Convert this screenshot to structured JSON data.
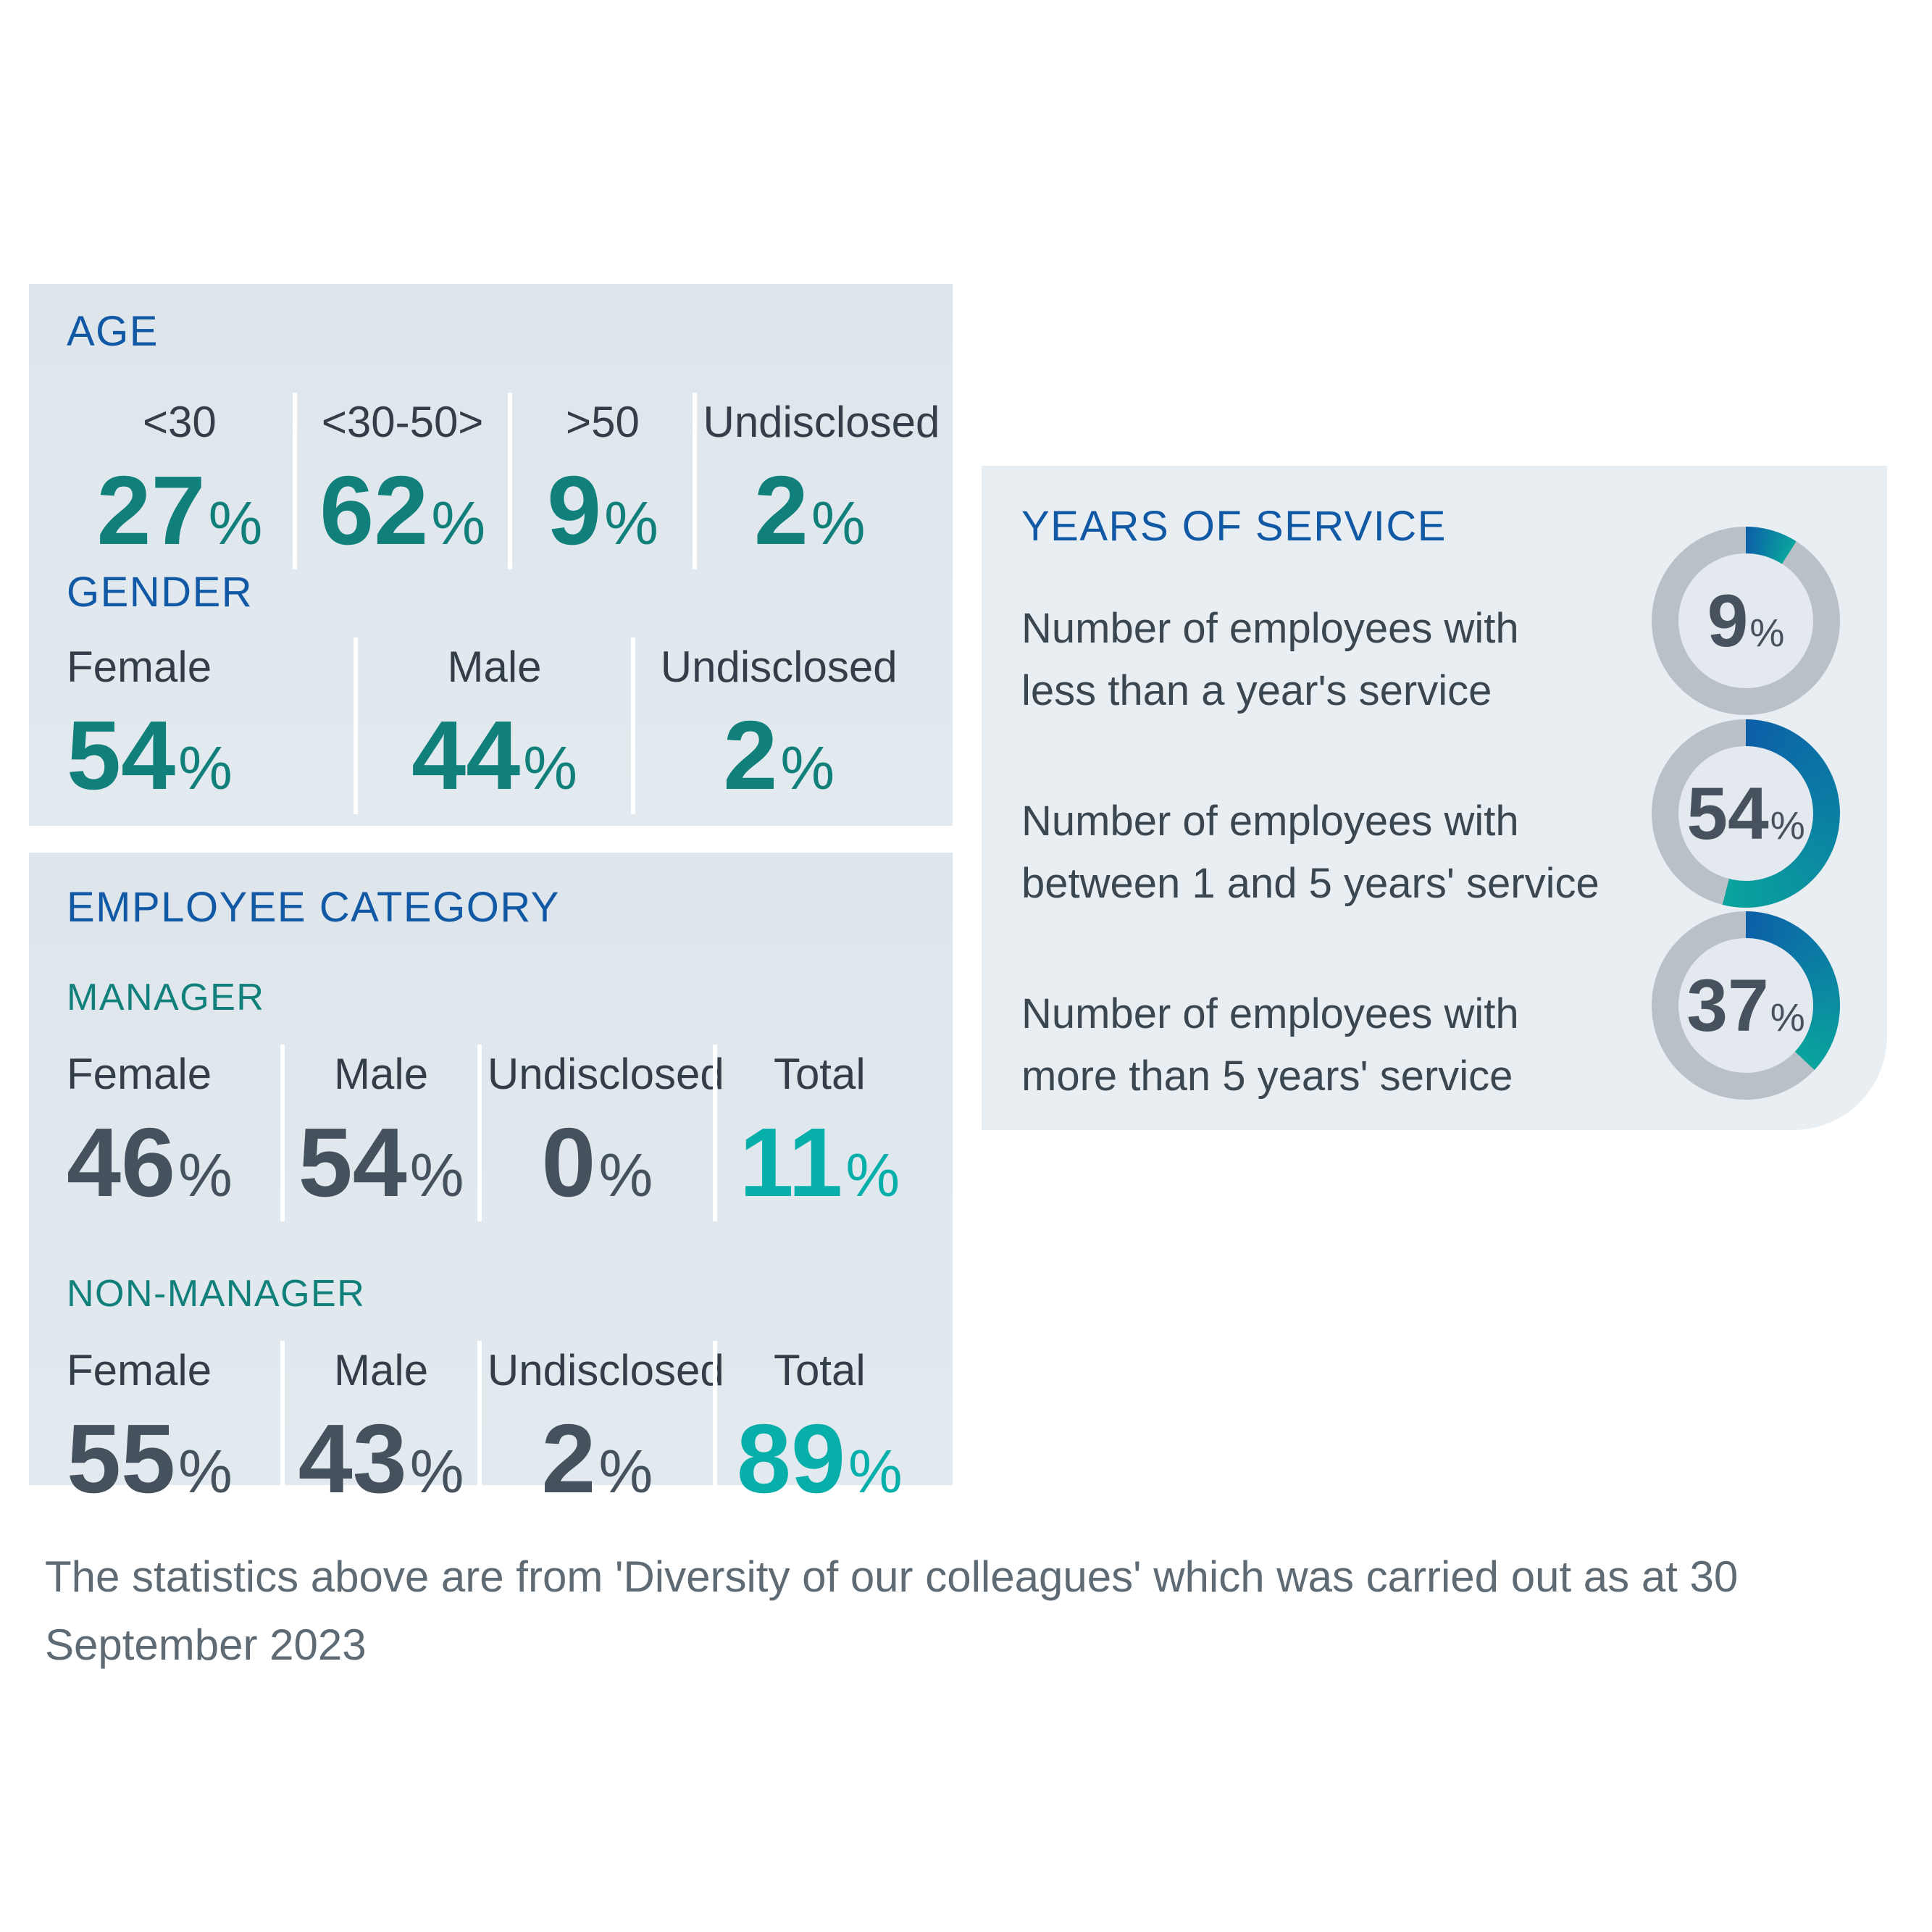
{
  "chart_data": [
    {
      "type": "table",
      "title": "AGE",
      "categories": [
        "<30",
        "<30-50>",
        ">50",
        "Undisclosed"
      ],
      "values": [
        27,
        62,
        9,
        2
      ],
      "unit": "%"
    },
    {
      "type": "table",
      "title": "GENDER",
      "categories": [
        "Female",
        "Male",
        "Undisclosed"
      ],
      "values": [
        54,
        44,
        2
      ],
      "unit": "%"
    },
    {
      "type": "table",
      "title": "EMPLOYEE CATEGORY - MANAGER",
      "categories": [
        "Female",
        "Male",
        "Undisclosed",
        "Total"
      ],
      "values": [
        46,
        54,
        0,
        11
      ],
      "unit": "%"
    },
    {
      "type": "table",
      "title": "EMPLOYEE CATEGORY - NON-MANAGER",
      "categories": [
        "Female",
        "Male",
        "Undisclosed",
        "Total"
      ],
      "values": [
        55,
        43,
        2,
        89
      ],
      "unit": "%"
    },
    {
      "type": "pie",
      "title": "YEARS OF SERVICE",
      "categories": [
        "less than a year's service",
        "between 1 and 5 years' service",
        "more than 5 years' service"
      ],
      "values": [
        9,
        54,
        37
      ],
      "unit": "%",
      "legend_position": "left",
      "annotations": "donut rings, progress clockwise from 12 o'clock, blue-to-teal gradient arc on gray ring"
    }
  ],
  "misc": {
    "percent": "%"
  },
  "colors": {
    "heading_blue": "#1159a5",
    "dark_teal": "#11807b",
    "bright_teal": "#06afa9",
    "slate": "#45515c",
    "label_slate": "#333e48",
    "panel_left_bg": "#dfe6ec",
    "panel_right_bg": "#e9eef2",
    "ring_gray": "#b9c0c7",
    "ring_inner": "#e3e9ee",
    "arc_start": "#0c5fa8",
    "arc_end": "#0aa49d",
    "caption_gray": "#5e6a74"
  },
  "panels": {
    "age": {
      "title": "AGE",
      "items": [
        {
          "label": "<30",
          "value": "27"
        },
        {
          "label": "<30-50>",
          "value": "62"
        },
        {
          "label": ">50",
          "value": "9"
        },
        {
          "label": "Undisclosed",
          "value": "2"
        }
      ]
    },
    "gender": {
      "title": "GENDER",
      "items": [
        {
          "label": "Female",
          "value": "54"
        },
        {
          "label": "Male",
          "value": "44"
        },
        {
          "label": "Undisclosed",
          "value": "2"
        }
      ]
    },
    "employee_category": {
      "title": "EMPLOYEE CATEGORY",
      "groups": [
        {
          "name": "MANAGER",
          "items": [
            {
              "label": "Female",
              "value": "46"
            },
            {
              "label": "Male",
              "value": "54"
            },
            {
              "label": "Undisclosed",
              "value": "0"
            },
            {
              "label": "Total",
              "value": "11"
            }
          ]
        },
        {
          "name": "NON-MANAGER",
          "items": [
            {
              "label": "Female",
              "value": "55"
            },
            {
              "label": "Male",
              "value": "43"
            },
            {
              "label": "Undisclosed",
              "value": "2"
            },
            {
              "label": "Total",
              "value": "89"
            }
          ]
        }
      ]
    },
    "years_of_service": {
      "title": "YEARS OF SERVICE",
      "rows": [
        {
          "line1": "Number of employees with",
          "line2": "less than a year's service",
          "value": "9",
          "percent": 9
        },
        {
          "line1": "Number of employees with",
          "line2": "between 1 and 5 years' service",
          "value": "54",
          "percent": 54
        },
        {
          "line1": "Number of employees with",
          "line2": "more than 5 years' service",
          "value": "37",
          "percent": 37
        }
      ]
    }
  },
  "caption": {
    "text": "The statistics above are from 'Diversity of our colleagues' which was carried out as at 30 September 2023"
  }
}
